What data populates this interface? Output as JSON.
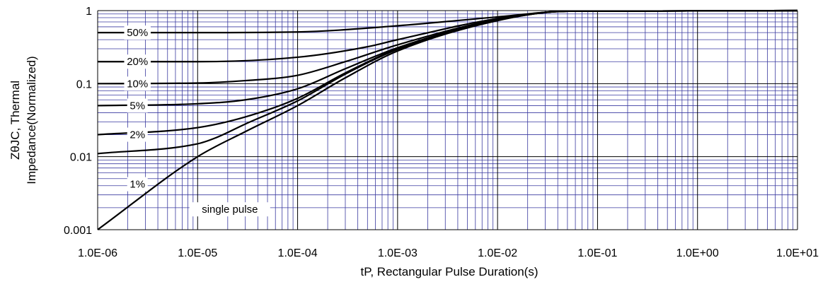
{
  "chart_data": {
    "type": "line",
    "xscale": "log",
    "yscale": "log",
    "xlim": [
      1e-06,
      10
    ],
    "ylim": [
      0.001,
      1
    ],
    "grid": true,
    "xlabel": "tP, Rectangular Pulse Duration(s)",
    "ylabel_line1": "ZθJC, Thermal",
    "ylabel_line2": "Impedance(Normalized)",
    "xtick_values": [
      1e-06,
      1e-05,
      0.0001,
      0.001,
      0.01,
      0.1,
      1,
      10
    ],
    "xtick_labels": [
      "1.0E-06",
      "1.0E-05",
      "1.0E-04",
      "1.0E-03",
      "1.0E-02",
      "1.0E-01",
      "1.0E+00",
      "1.0E+01"
    ],
    "ytick_values": [
      0.001,
      0.01,
      0.1,
      1
    ],
    "ytick_labels": [
      "0.001",
      "0.01",
      "0.1",
      "1"
    ],
    "colors": {
      "grid_minor": "#3a3aa0",
      "grid_major": "#000000",
      "line": "#000000"
    },
    "series": [
      {
        "name": "50%",
        "label_x": 2.5e-06,
        "label_y": 0.5,
        "x": [
          1e-06,
          1e-05,
          0.0001,
          0.001,
          0.01,
          0.05,
          10
        ],
        "y": [
          0.5,
          0.5,
          0.51,
          0.62,
          0.82,
          0.98,
          1.0
        ]
      },
      {
        "name": "20%",
        "label_x": 2.5e-06,
        "label_y": 0.2,
        "x": [
          1e-06,
          1e-05,
          0.0001,
          0.0005,
          0.001,
          0.01,
          0.05,
          10
        ],
        "y": [
          0.2,
          0.2,
          0.23,
          0.32,
          0.4,
          0.78,
          0.98,
          1.0
        ]
      },
      {
        "name": "10%",
        "label_x": 2.5e-06,
        "label_y": 0.1,
        "x": [
          1e-06,
          1e-05,
          3e-05,
          0.0001,
          0.0003,
          0.001,
          0.01,
          0.05,
          10
        ],
        "y": [
          0.1,
          0.102,
          0.11,
          0.13,
          0.2,
          0.34,
          0.76,
          0.98,
          1.0
        ]
      },
      {
        "name": "5%",
        "label_x": 2.5e-06,
        "label_y": 0.05,
        "x": [
          1e-06,
          1e-05,
          3e-05,
          0.0001,
          0.0003,
          0.001,
          0.01,
          0.05,
          10
        ],
        "y": [
          0.05,
          0.053,
          0.06,
          0.085,
          0.16,
          0.31,
          0.75,
          0.98,
          1.0
        ]
      },
      {
        "name": "2%",
        "label_x": 2.5e-06,
        "label_y": 0.02,
        "x": [
          1e-06,
          1e-05,
          3e-05,
          0.0001,
          0.0003,
          0.001,
          0.01,
          0.05,
          10
        ],
        "y": [
          0.02,
          0.025,
          0.035,
          0.063,
          0.14,
          0.3,
          0.74,
          0.98,
          1.0
        ]
      },
      {
        "name": "1%",
        "label_x": 2.5e-06,
        "label_y": 0.0042,
        "x": [
          1e-06,
          1e-05,
          1.5e-05,
          3e-05,
          0.0001,
          0.0003,
          0.001,
          0.01,
          0.05,
          10
        ],
        "y": [
          0.011,
          0.015,
          0.018,
          0.028,
          0.058,
          0.135,
          0.295,
          0.74,
          0.98,
          1.0
        ]
      },
      {
        "name": "single pulse",
        "label_x": 2.1e-05,
        "label_y": 0.0019,
        "x": [
          1e-06,
          1e-05,
          3e-05,
          0.0001,
          0.0003,
          0.001,
          0.01,
          0.05,
          10
        ],
        "y": [
          0.001,
          0.01,
          0.022,
          0.05,
          0.12,
          0.28,
          0.73,
          0.98,
          1.0
        ]
      }
    ]
  }
}
